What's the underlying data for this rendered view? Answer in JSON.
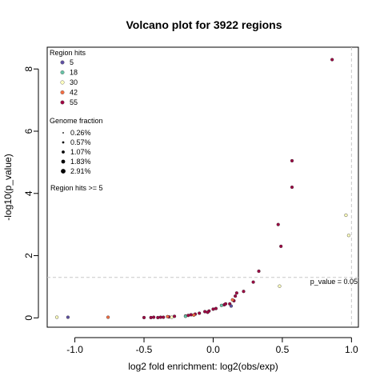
{
  "chart_data": {
    "type": "scatter",
    "title": "Volcano plot for 3922 regions",
    "xlabel": "log2 fold enrichment: log2(obs/exp)",
    "ylabel": "-log10(p_value)",
    "xlim": [
      -1.2,
      1.05
    ],
    "ylim": [
      -0.3,
      8.7
    ],
    "x_ticks": [
      "-1.0",
      "-0.5",
      "0.0",
      "0.5",
      "1.0"
    ],
    "y_ticks": [
      "0",
      "2",
      "4",
      "6",
      "8"
    ],
    "grid": false,
    "legend_position": "top-left",
    "region_hits_legend": {
      "title": "Region hits",
      "entries": [
        {
          "label": "5",
          "color": "#5e4fa2"
        },
        {
          "label": "18",
          "color": "#66c2a5"
        },
        {
          "label": "30",
          "color": "#ffffbf"
        },
        {
          "label": "42",
          "color": "#f46d43"
        },
        {
          "label": "55",
          "color": "#9e0142"
        }
      ]
    },
    "genome_fraction_legend": {
      "title": "Genome fraction",
      "entries": [
        "0.26%",
        "0.57%",
        "1.07%",
        "1.83%",
        "2.91%"
      ]
    },
    "note": "Region hits >= 5",
    "threshold_line": {
      "y": 1.3,
      "label": "p_value = 0.05"
    },
    "vertical_line": {
      "x": 1.0
    },
    "series": [
      {
        "color": "#9e0142",
        "points": [
          [
            0.86,
            8.3
          ],
          [
            0.57,
            5.05
          ],
          [
            0.57,
            4.2
          ],
          [
            0.47,
            3.0
          ],
          [
            0.49,
            2.3
          ],
          [
            0.33,
            1.5
          ],
          [
            0.29,
            1.15
          ],
          [
            0.22,
            0.85
          ],
          [
            0.17,
            0.8
          ],
          [
            0.16,
            0.7
          ],
          [
            0.15,
            0.55
          ],
          [
            0.12,
            0.45
          ],
          [
            0.08,
            0.42
          ],
          [
            0.0,
            0.28
          ],
          [
            -0.03,
            0.22
          ],
          [
            -0.06,
            0.2
          ],
          [
            -0.1,
            0.15
          ],
          [
            -0.13,
            0.12
          ],
          [
            -0.16,
            0.1
          ],
          [
            -0.18,
            0.08
          ],
          [
            -0.2,
            0.06
          ],
          [
            -0.28,
            0.05
          ],
          [
            -0.32,
            0.03
          ],
          [
            -0.36,
            0.02
          ],
          [
            -0.38,
            0.02
          ],
          [
            -0.4,
            0.01
          ],
          [
            -0.43,
            0.02
          ],
          [
            -0.45,
            0.01
          ],
          [
            -0.5,
            0.01
          ],
          [
            0.09,
            0.45
          ],
          [
            0.02,
            0.3
          ],
          [
            -0.04,
            0.18
          ]
        ]
      },
      {
        "color": "#ffffbf",
        "points": [
          [
            0.96,
            3.3
          ],
          [
            0.98,
            2.65
          ],
          [
            0.48,
            1.02
          ],
          [
            -1.13,
            0.02
          ],
          [
            -0.3,
            0.02
          ]
        ]
      },
      {
        "color": "#5e4fa2",
        "points": [
          [
            -1.05,
            0.02
          ],
          [
            0.13,
            0.38
          ]
        ]
      },
      {
        "color": "#66c2a5",
        "points": [
          [
            -0.2,
            0.05
          ],
          [
            0.06,
            0.4
          ]
        ]
      },
      {
        "color": "#f46d43",
        "points": [
          [
            -0.76,
            0.02
          ],
          [
            0.14,
            0.58
          ],
          [
            -0.33,
            0.04
          ],
          [
            -0.14,
            0.09
          ]
        ]
      }
    ]
  }
}
